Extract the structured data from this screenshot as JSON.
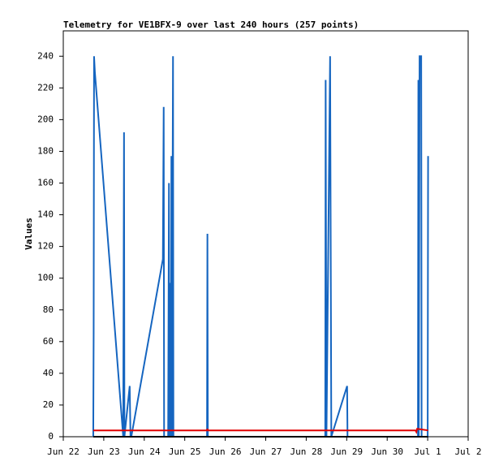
{
  "chart_data": {
    "type": "line",
    "title": "Telemetry for VE1BFX-9 over last 240 hours (257 points)",
    "y_label": "Values",
    "xlim": [
      0,
      10
    ],
    "xticks": [
      {
        "value": 0,
        "label": "Jun 22"
      },
      {
        "value": 1,
        "label": "Jun 23"
      },
      {
        "value": 2,
        "label": "Jun 24"
      },
      {
        "value": 3,
        "label": "Jun 25"
      },
      {
        "value": 4,
        "label": "Jun 26"
      },
      {
        "value": 5,
        "label": "Jun 27"
      },
      {
        "value": 6,
        "label": "Jun 28"
      },
      {
        "value": 7,
        "label": "Jun 29"
      },
      {
        "value": 8,
        "label": "Jun 30"
      },
      {
        "value": 9,
        "label": "Jul 1"
      },
      {
        "value": 10,
        "label": "Jul 2"
      }
    ],
    "ylim": [
      0,
      256
    ],
    "yticks": [
      0,
      20,
      40,
      60,
      80,
      100,
      120,
      140,
      160,
      180,
      200,
      220,
      240
    ],
    "series": [
      {
        "color": "#1565c0",
        "x": [
          0.74,
          0.75,
          0.76,
          0.78,
          1.48,
          1.5,
          1.51,
          1.64,
          1.66,
          1.68,
          2.46,
          2.48,
          2.49,
          2.59,
          2.61,
          2.62,
          2.65,
          2.66,
          2.67,
          2.68,
          2.71,
          2.72,
          3.55,
          3.56,
          3.57,
          6.47,
          6.48,
          6.49,
          6.5,
          6.59,
          6.62,
          7.01,
          7.02,
          8.76,
          8.77,
          8.78,
          8.8,
          8.84,
          8.85,
          9.0,
          9.01
        ],
        "values": [
          0,
          65,
          240,
          230,
          0,
          192,
          0,
          32,
          0,
          0,
          112,
          208,
          0,
          0,
          160,
          0,
          97,
          0,
          177,
          0,
          240,
          0,
          0,
          128,
          0,
          0,
          225,
          112,
          0,
          240,
          0,
          32,
          0,
          0,
          225,
          0,
          240,
          240,
          0,
          0,
          177
        ]
      },
      {
        "color": "#000000",
        "x": [
          0.74,
          9.01
        ],
        "values": [
          0,
          0
        ]
      },
      {
        "color": "#e00000",
        "x": [
          0.74,
          3.55,
          3.56,
          3.57,
          8.7,
          8.72,
          8.74,
          9.01
        ],
        "values": [
          4,
          4,
          5,
          4,
          4,
          3,
          5,
          4
        ]
      }
    ]
  }
}
